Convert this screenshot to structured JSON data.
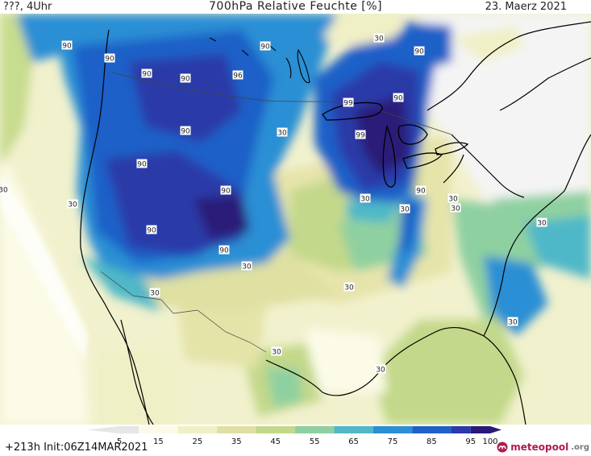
{
  "header": {
    "left": "???, 4Uhr",
    "title": "700hPa Relative Feuchte [%]",
    "date": "23. Maerz 2021"
  },
  "footer": {
    "init": "+213h  Init:06Z14MAR2021",
    "brand_name": "meteopool",
    "brand_tld": ".org"
  },
  "legend": {
    "ticks": [
      "5",
      "15",
      "25",
      "35",
      "45",
      "55",
      "65",
      "75",
      "85",
      "95",
      "100"
    ],
    "bins": [
      {
        "range": [
          0,
          10
        ],
        "color": "#e6e6e6"
      },
      {
        "range": [
          10,
          20
        ],
        "color": "#fbfbe8"
      },
      {
        "range": [
          20,
          30
        ],
        "color": "#f0f0c6"
      },
      {
        "range": [
          30,
          40
        ],
        "color": "#dfe0a2"
      },
      {
        "range": [
          40,
          50
        ],
        "color": "#c3d88a"
      },
      {
        "range": [
          50,
          60
        ],
        "color": "#8fd0a0"
      },
      {
        "range": [
          60,
          70
        ],
        "color": "#50b8c8"
      },
      {
        "range": [
          70,
          80
        ],
        "color": "#2a8fd4"
      },
      {
        "range": [
          80,
          90
        ],
        "color": "#1f60c8"
      },
      {
        "range": [
          90,
          95
        ],
        "color": "#2a3aa8"
      },
      {
        "range": [
          95,
          100
        ],
        "color": "#2a1a78"
      }
    ]
  },
  "contour_labels": [
    {
      "text": "90"
    },
    {
      "text": "90"
    },
    {
      "text": "30"
    },
    {
      "text": "90"
    },
    {
      "text": "90"
    },
    {
      "text": "90"
    },
    {
      "text": "90"
    },
    {
      "text": "96"
    },
    {
      "text": "90"
    },
    {
      "text": "99"
    },
    {
      "text": "30"
    },
    {
      "text": "99"
    },
    {
      "text": "90"
    },
    {
      "text": "90"
    },
    {
      "text": "90"
    },
    {
      "text": "30"
    },
    {
      "text": "30"
    },
    {
      "text": "90"
    },
    {
      "text": "30"
    },
    {
      "text": "30"
    },
    {
      "text": "30"
    },
    {
      "text": "30"
    },
    {
      "text": "30"
    },
    {
      "text": "90"
    },
    {
      "text": "90"
    },
    {
      "text": "30"
    },
    {
      "text": "30"
    },
    {
      "text": "30"
    },
    {
      "text": "30"
    },
    {
      "text": "30"
    },
    {
      "text": "30"
    }
  ]
}
